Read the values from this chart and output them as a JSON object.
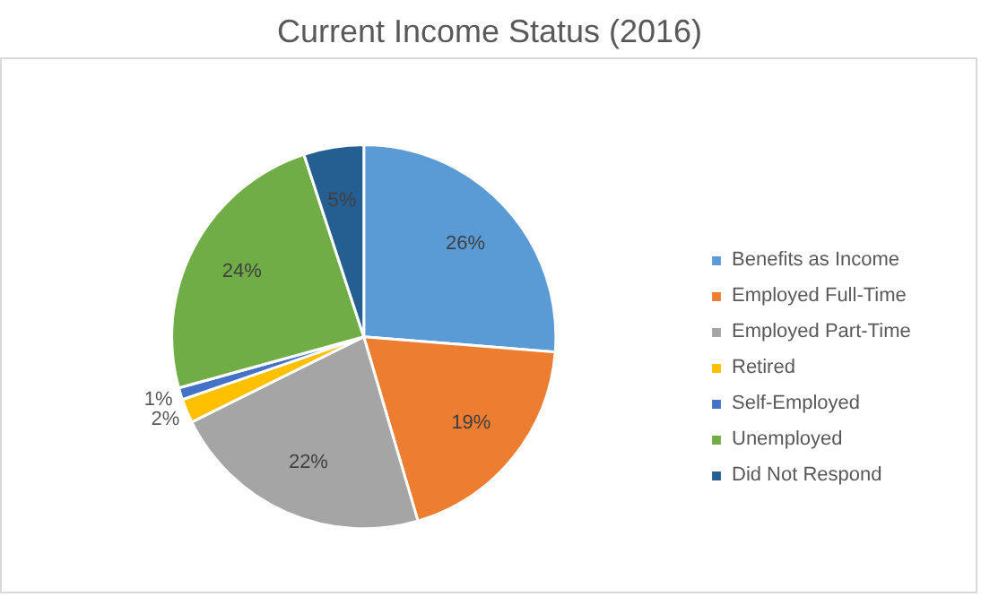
{
  "chart_data": {
    "type": "pie",
    "title": "Current Income Status (2016)",
    "categories": [
      "Benefits as Income",
      "Employed Full-Time",
      "Employed Part-Time",
      "Retired",
      "Self-Employed",
      "Unemployed",
      "Did Not Respond"
    ],
    "values": [
      26,
      19,
      22,
      2,
      1,
      24,
      5
    ],
    "colors": [
      "#5b9bd5",
      "#ed7d31",
      "#a5a5a5",
      "#ffc000",
      "#4472c4",
      "#70ad47",
      "#255e91"
    ],
    "value_labels": [
      "26%",
      "19%",
      "22%",
      "2%",
      "1%",
      "24%",
      "5%"
    ],
    "legend": "right"
  }
}
